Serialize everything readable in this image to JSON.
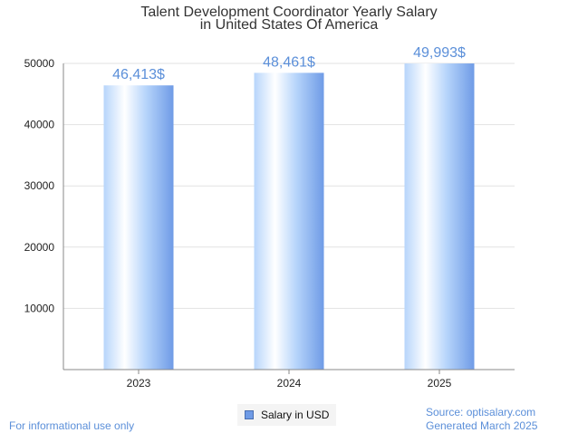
{
  "chart_data": {
    "type": "bar",
    "title": [
      "Talent Development Coordinator Yearly Salary",
      "in United States Of America"
    ],
    "categories": [
      "2023",
      "2024",
      "2025"
    ],
    "series": [
      {
        "name": "Salary in USD",
        "values": [
          46413,
          48461,
          49993
        ]
      }
    ],
    "data_labels": [
      "46,413$",
      "48,461$",
      "49,993$"
    ],
    "yticks": [
      10000,
      20000,
      30000,
      40000,
      50000
    ],
    "ylim": [
      0,
      50000
    ],
    "xlabel": "",
    "ylabel": "",
    "grid": true,
    "legend": "bottom-center"
  },
  "colors": {
    "bar_light": "#ffffff",
    "bar_mid": "#b7d5fb",
    "bar_dark": "#6f9be6",
    "label": "#5b8fd9"
  },
  "legend": {
    "label": "Salary in USD"
  },
  "footer": {
    "disclaimer": "For informational use only",
    "source": "Source: optisalary.com",
    "generated": "Generated March 2025"
  }
}
